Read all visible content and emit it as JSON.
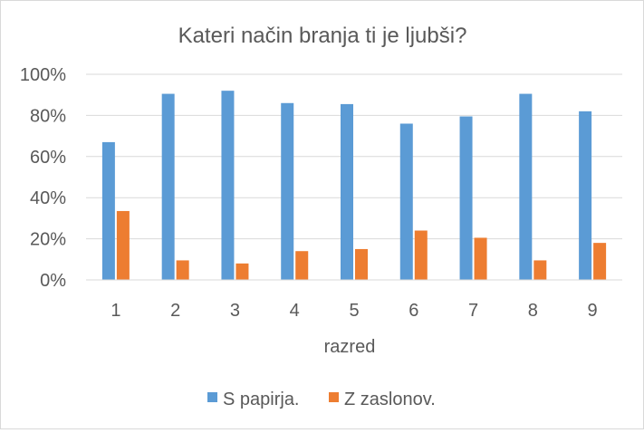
{
  "chart_data": {
    "type": "bar",
    "title": "Kateri način branja ti je ljubši?",
    "xlabel": "razred",
    "ylabel": "",
    "categories": [
      "1",
      "2",
      "3",
      "4",
      "5",
      "6",
      "7",
      "8",
      "9"
    ],
    "series": [
      {
        "name": "S papirja.",
        "color": "#5b9bd5",
        "values": [
          0.67,
          0.905,
          0.92,
          0.86,
          0.855,
          0.76,
          0.795,
          0.905,
          0.82
        ]
      },
      {
        "name": "Z zaslonov.",
        "color": "#ed7d31",
        "values": [
          0.335,
          0.095,
          0.08,
          0.14,
          0.15,
          0.24,
          0.205,
          0.095,
          0.18
        ]
      }
    ],
    "ylim": [
      0,
      1
    ],
    "y_ticks": [
      "0%",
      "20%",
      "40%",
      "60%",
      "80%",
      "100%"
    ],
    "y_tick_values": [
      0,
      0.2,
      0.4,
      0.6,
      0.8,
      1.0
    ],
    "grid": true,
    "legend_position": "bottom",
    "gridline_color": "#d9d9d9"
  }
}
